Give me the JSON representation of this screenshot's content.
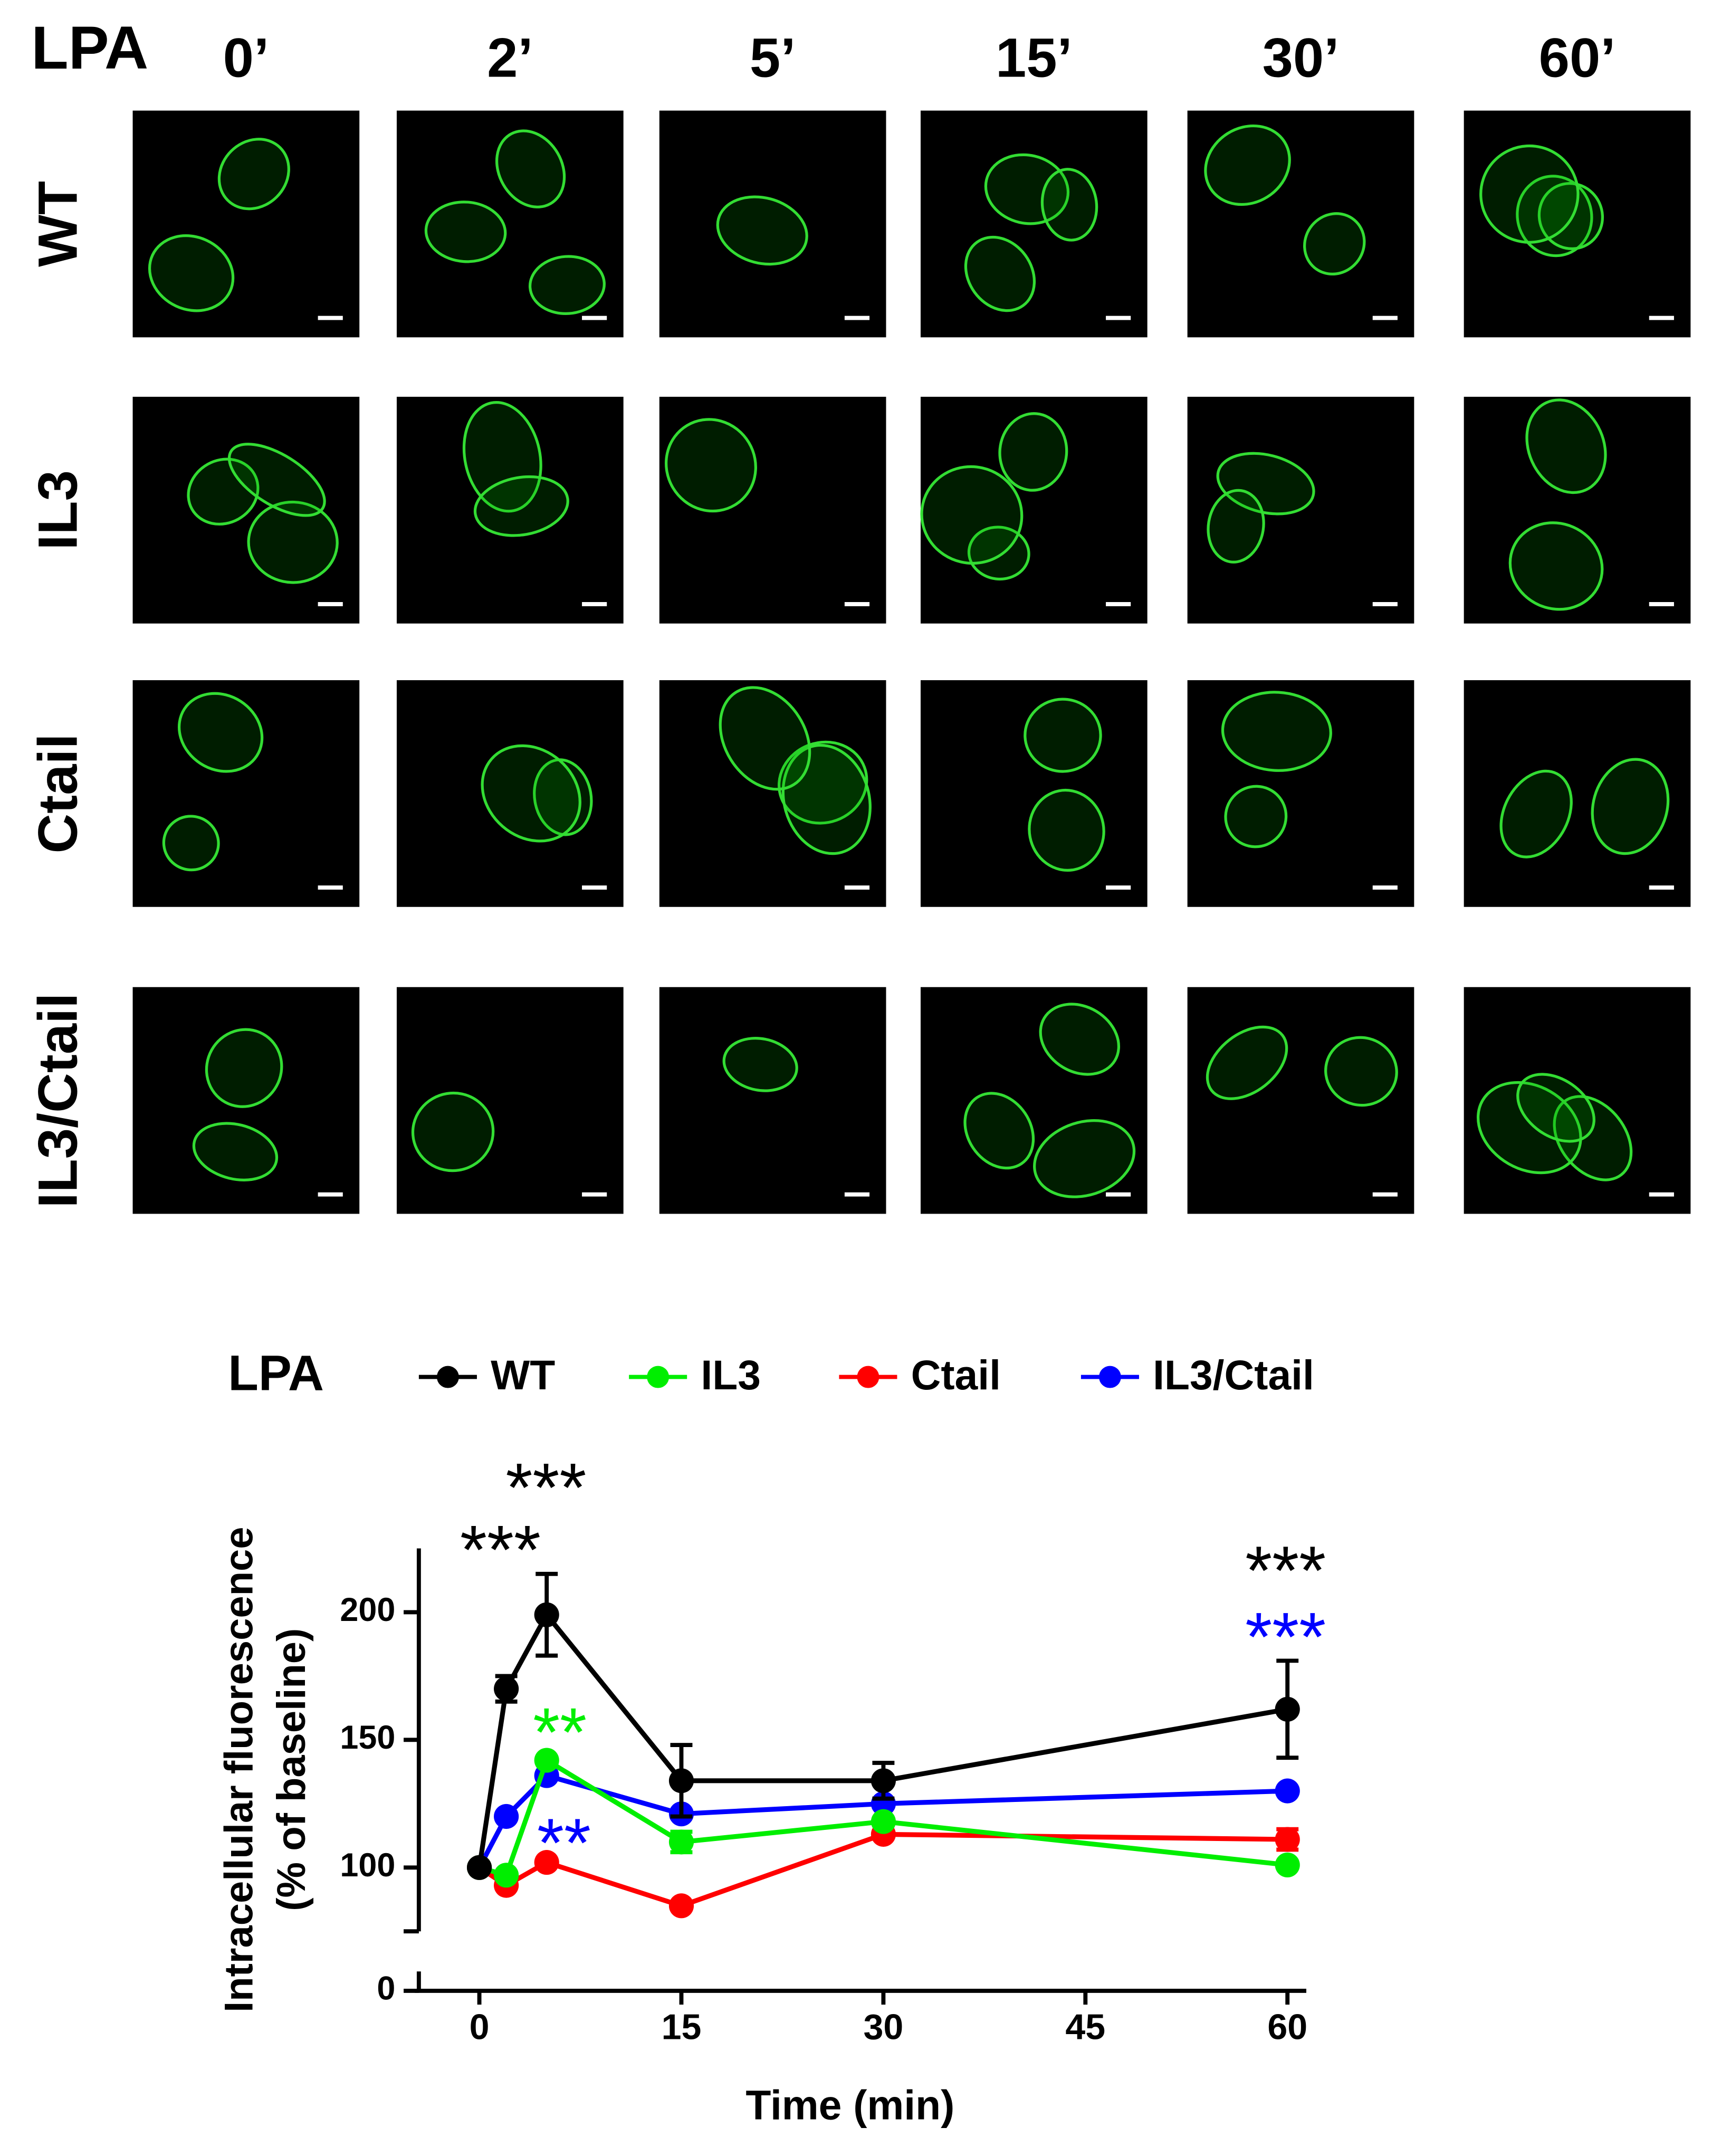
{
  "figure": {
    "treatment_label": "LPA",
    "time_labels": [
      "0’",
      "2’",
      "5’",
      "15’",
      "30’",
      "60’"
    ],
    "row_labels": [
      "WT",
      "IL3",
      "Ctail",
      "IL3/Ctail"
    ]
  },
  "chart_data": {
    "type": "line",
    "legend_title": "LPA",
    "x_label": "Time (min)",
    "y_label": [
      "Intracellular fluorescence",
      "(% of baseline)"
    ],
    "x": [
      0,
      2,
      5,
      15,
      30,
      60
    ],
    "xlim": [
      -4.8,
      61.4
    ],
    "xticks": [
      0,
      15,
      30,
      45,
      60
    ],
    "ylim": [
      75,
      225
    ],
    "yticks": [
      0,
      100,
      150,
      200
    ],
    "y_break": true,
    "series": [
      {
        "name": "WT",
        "color": "#000000",
        "values": [
          100,
          170,
          199,
          134,
          134,
          162
        ],
        "errors": [
          null,
          5,
          16,
          14,
          7,
          19
        ]
      },
      {
        "name": "IL3",
        "color": "#00ee00",
        "values": [
          100,
          97,
          142,
          110,
          118,
          101
        ],
        "errors": [
          null,
          null,
          null,
          4,
          null,
          null
        ]
      },
      {
        "name": "Ctail",
        "color": "#ff0000",
        "values": [
          100,
          93,
          102,
          85,
          113,
          111
        ],
        "errors": [
          null,
          null,
          null,
          null,
          null,
          4
        ]
      },
      {
        "name": "IL3/Ctail",
        "color": "#0000ff",
        "values": [
          100,
          120,
          136,
          121,
          125,
          130
        ],
        "errors": [
          null,
          null,
          null,
          null,
          null,
          null
        ]
      }
    ],
    "annotations": [
      {
        "text": "***",
        "color": "#000000"
      },
      {
        "text": "***",
        "color": "#000000"
      },
      {
        "text": "**",
        "color": "#00ee00"
      },
      {
        "text": "**",
        "color": "#0000ff"
      },
      {
        "text": "***",
        "color": "#000000"
      },
      {
        "text": "***",
        "color": "#0000ff"
      }
    ]
  }
}
